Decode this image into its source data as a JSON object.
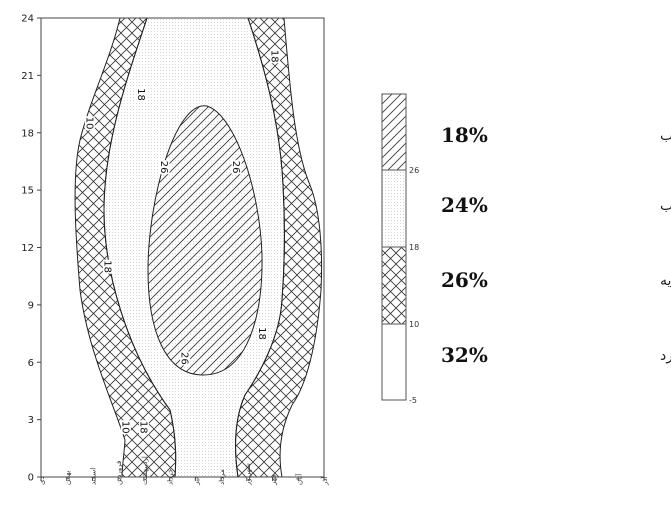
{
  "chart_data": {
    "type": "heatmap",
    "title": "",
    "xlabel": "",
    "ylabel": "",
    "y_ticks": [
      0,
      3,
      6,
      9,
      12,
      15,
      18,
      21,
      24
    ],
    "ylim": [
      0,
      24
    ],
    "x_categories": [
      "دی",
      "بهمن",
      "اسفند",
      "فروردین",
      "اردیبهشت",
      "خرداد",
      "تیر",
      "مرداد",
      "شهریور",
      "مهر",
      "آبان",
      "آذر"
    ],
    "contours": [
      {
        "value": "10",
        "label_text": "10"
      },
      {
        "value": "18",
        "label_text": "18"
      },
      {
        "value": "26",
        "label_text": "26"
      }
    ],
    "contour_labels": [
      {
        "text": "10",
        "month": 1.9,
        "hour": 18.5
      },
      {
        "text": "18",
        "month": 3.9,
        "hour": 20.0
      },
      {
        "text": "18",
        "month": 9.1,
        "hour": 22.0
      },
      {
        "text": "26",
        "month": 4.8,
        "hour": 16.2
      },
      {
        "text": "26",
        "month": 7.6,
        "hour": 16.2
      },
      {
        "text": "18",
        "month": 2.6,
        "hour": 11.0
      },
      {
        "text": "26",
        "month": 5.6,
        "hour": 6.2
      },
      {
        "text": "18",
        "month": 8.6,
        "hour": 7.5
      },
      {
        "text": "10",
        "month": 3.3,
        "hour": 2.6
      },
      {
        "text": "18",
        "month": 4.0,
        "hour": 2.6
      }
    ],
    "legend": {
      "position": "right",
      "ticks": [
        "26",
        "18",
        "10",
        "-5"
      ],
      "entries": [
        {
          "percent": "18%",
          "label": "آسایش در آفتاب",
          "pattern": "diagonal"
        },
        {
          "percent": "24%",
          "label": "آسایش مطلوب",
          "pattern": "dots"
        },
        {
          "percent": "26%",
          "label": "آسایش در سایه",
          "pattern": "crosshatch"
        },
        {
          "percent": "32%",
          "label": "مواقع سرد",
          "pattern": "none"
        }
      ]
    }
  }
}
